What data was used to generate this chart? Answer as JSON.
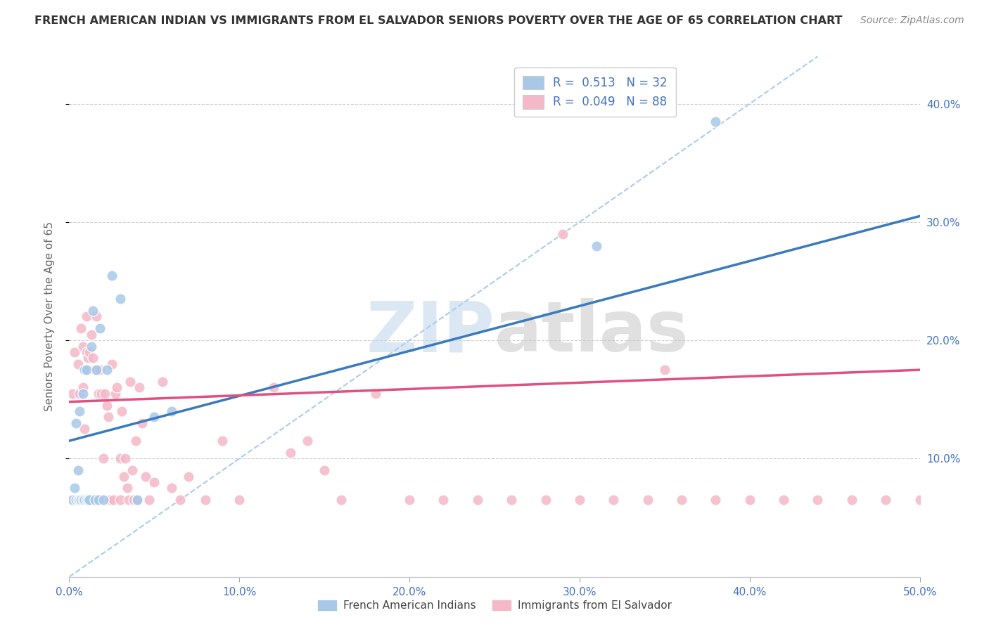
{
  "title": "FRENCH AMERICAN INDIAN VS IMMIGRANTS FROM EL SALVADOR SENIORS POVERTY OVER THE AGE OF 65 CORRELATION CHART",
  "source": "Source: ZipAtlas.com",
  "ylabel": "Seniors Poverty Over the Age of 65",
  "xlim": [
    0.0,
    0.5
  ],
  "ylim": [
    0.0,
    0.44
  ],
  "color_blue": "#a8c8e8",
  "color_pink": "#f4b8c8",
  "color_blue_line": "#3a7abf",
  "color_pink_line": "#e05080",
  "color_dashed_line": "#aaccee",
  "watermark_zip": "ZIP",
  "watermark_atlas": "atlas",
  "background_color": "#ffffff",
  "grid_color": "#cccccc",
  "title_color": "#333333",
  "axis_color": "#4472c4",
  "label_color": "#666666",
  "blue_scatter_x": [
    0.002,
    0.003,
    0.004,
    0.004,
    0.005,
    0.005,
    0.006,
    0.006,
    0.007,
    0.008,
    0.008,
    0.009,
    0.009,
    0.01,
    0.01,
    0.011,
    0.012,
    0.013,
    0.014,
    0.015,
    0.016,
    0.017,
    0.018,
    0.02,
    0.022,
    0.025,
    0.03,
    0.04,
    0.05,
    0.06,
    0.31,
    0.38
  ],
  "blue_scatter_y": [
    0.065,
    0.075,
    0.065,
    0.13,
    0.065,
    0.09,
    0.065,
    0.14,
    0.065,
    0.065,
    0.155,
    0.065,
    0.175,
    0.065,
    0.175,
    0.065,
    0.065,
    0.195,
    0.225,
    0.065,
    0.175,
    0.065,
    0.21,
    0.065,
    0.175,
    0.255,
    0.235,
    0.065,
    0.135,
    0.14,
    0.28,
    0.385
  ],
  "pink_scatter_x": [
    0.002,
    0.003,
    0.003,
    0.004,
    0.005,
    0.005,
    0.006,
    0.006,
    0.007,
    0.007,
    0.008,
    0.008,
    0.008,
    0.009,
    0.009,
    0.01,
    0.01,
    0.01,
    0.011,
    0.012,
    0.012,
    0.013,
    0.013,
    0.014,
    0.015,
    0.015,
    0.016,
    0.016,
    0.017,
    0.018,
    0.019,
    0.02,
    0.021,
    0.022,
    0.023,
    0.024,
    0.025,
    0.026,
    0.027,
    0.028,
    0.03,
    0.03,
    0.031,
    0.032,
    0.033,
    0.034,
    0.035,
    0.036,
    0.037,
    0.038,
    0.039,
    0.04,
    0.041,
    0.043,
    0.045,
    0.047,
    0.05,
    0.055,
    0.06,
    0.065,
    0.07,
    0.08,
    0.09,
    0.1,
    0.12,
    0.13,
    0.14,
    0.15,
    0.16,
    0.18,
    0.2,
    0.22,
    0.24,
    0.26,
    0.28,
    0.3,
    0.32,
    0.34,
    0.36,
    0.38,
    0.4,
    0.42,
    0.44,
    0.46,
    0.48,
    0.5,
    0.29,
    0.35
  ],
  "pink_scatter_y": [
    0.155,
    0.065,
    0.19,
    0.065,
    0.065,
    0.18,
    0.065,
    0.155,
    0.065,
    0.21,
    0.065,
    0.16,
    0.195,
    0.065,
    0.125,
    0.065,
    0.19,
    0.22,
    0.185,
    0.065,
    0.19,
    0.065,
    0.205,
    0.185,
    0.065,
    0.175,
    0.22,
    0.065,
    0.155,
    0.175,
    0.155,
    0.1,
    0.155,
    0.145,
    0.135,
    0.065,
    0.18,
    0.065,
    0.155,
    0.16,
    0.1,
    0.065,
    0.14,
    0.085,
    0.1,
    0.075,
    0.065,
    0.165,
    0.09,
    0.065,
    0.115,
    0.065,
    0.16,
    0.13,
    0.085,
    0.065,
    0.08,
    0.165,
    0.075,
    0.065,
    0.085,
    0.065,
    0.115,
    0.065,
    0.16,
    0.105,
    0.115,
    0.09,
    0.065,
    0.155,
    0.065,
    0.065,
    0.065,
    0.065,
    0.065,
    0.065,
    0.065,
    0.065,
    0.065,
    0.065,
    0.065,
    0.065,
    0.065,
    0.065,
    0.065,
    0.065,
    0.29,
    0.175
  ],
  "blue_line_x": [
    0.0,
    0.5
  ],
  "blue_line_y": [
    0.115,
    0.305
  ],
  "pink_line_x": [
    0.0,
    0.5
  ],
  "pink_line_y": [
    0.148,
    0.175
  ],
  "diag_line_x": [
    0.0,
    0.44
  ],
  "diag_line_y": [
    0.0,
    0.44
  ]
}
